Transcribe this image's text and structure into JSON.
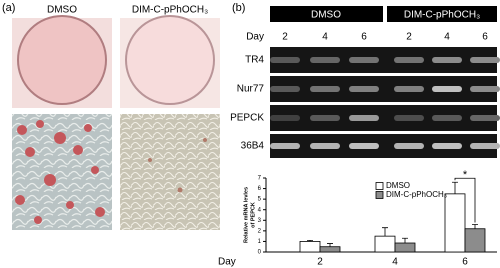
{
  "panel_a": {
    "label": "(a)",
    "columns": [
      "DMSO",
      "DIM-C-pPhOCH₃"
    ]
  },
  "panel_b": {
    "label": "(b)",
    "groups": [
      "DMSO",
      "DIM-C-pPhOCH₃"
    ],
    "day_label": "Day",
    "days": [
      "2",
      "4",
      "6",
      "2",
      "4",
      "6"
    ],
    "rows": [
      "TR4",
      "Nur77",
      "PEPCK",
      "36B4"
    ]
  },
  "chart_data": {
    "type": "bar",
    "ylabel": [
      "Relative mRNA levles",
      "of PEPCK"
    ],
    "xlabel": "Day",
    "categories": [
      "2",
      "4",
      "6"
    ],
    "series": [
      {
        "name": "DMSO",
        "color": "#ffffff",
        "values": [
          1.0,
          1.5,
          5.5
        ],
        "errors": [
          0.1,
          0.8,
          1.1
        ]
      },
      {
        "name": "DIM-C-pPhOCH₃",
        "color": "#8c8c8c",
        "values": [
          0.5,
          0.85,
          2.2
        ],
        "errors": [
          0.3,
          0.45,
          0.4
        ]
      }
    ],
    "ylim": [
      0,
      7
    ],
    "yticks": [
      0,
      1,
      2,
      3,
      4,
      5,
      6,
      7
    ],
    "annotation": "*",
    "legend": "upper left"
  }
}
